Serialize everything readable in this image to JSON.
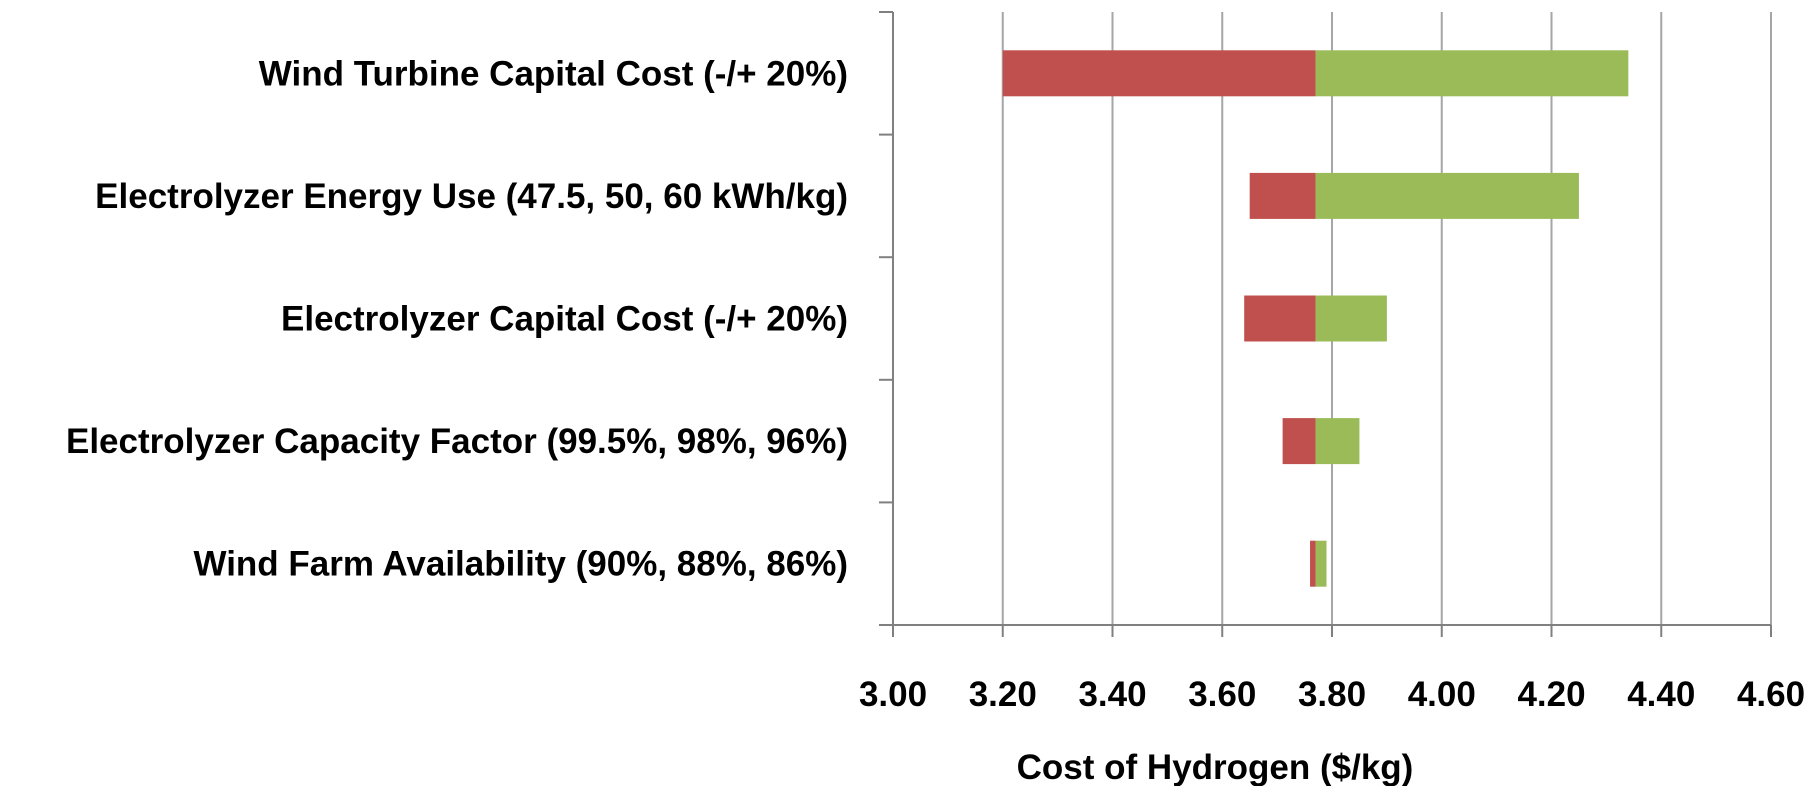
{
  "chart_data": {
    "type": "bar",
    "orientation": "horizontal",
    "chart_subtype": "tornado",
    "title": "",
    "xlabel": "Cost of Hydrogen ($/kg)",
    "ylabel": "",
    "xlim": [
      3.0,
      4.6
    ],
    "tick_values": [
      3.0,
      3.2,
      3.4,
      3.6,
      3.8,
      4.0,
      4.2,
      4.4,
      4.6
    ],
    "tick_labels": [
      "3.00",
      "3.20",
      "3.40",
      "3.60",
      "3.80",
      "4.00",
      "4.20",
      "4.40",
      "4.60"
    ],
    "baseline": 3.77,
    "grid": true,
    "legend": "none",
    "colors": {
      "low": "#c0504d",
      "high": "#9bbb59",
      "grid": "#a6a6a6",
      "axis": "#808080"
    },
    "categories": [
      "Wind Turbine Capital Cost (-/+ 20%)",
      "Electrolyzer Energy Use (47.5, 50, 60 kWh/kg)",
      "Electrolyzer Capital Cost (-/+ 20%)",
      "Electrolyzer Capacity Factor (99.5%, 98%, 96%)",
      "Wind Farm Availability (90%, 88%, 86%)"
    ],
    "series": [
      {
        "values": [
          3.2,
          3.65,
          3.64,
          3.71,
          3.76
        ]
      },
      {
        "values": [
          4.34,
          4.25,
          3.9,
          3.85,
          3.79
        ]
      }
    ]
  }
}
